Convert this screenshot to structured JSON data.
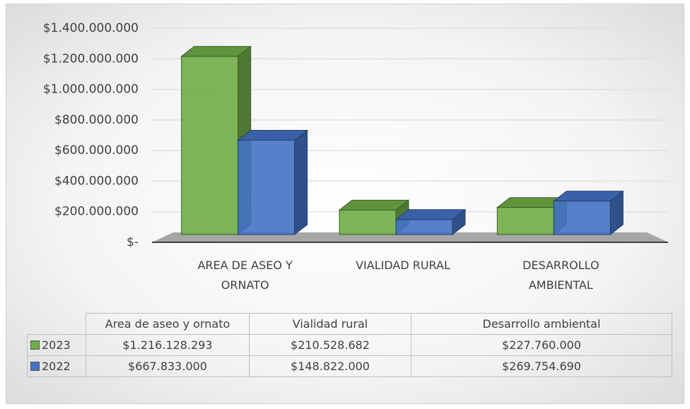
{
  "chart_data": {
    "type": "bar3d",
    "categories": [
      "AREA DE ASEO Y ORNATO",
      "VIALIDAD RURAL",
      "DESARROLLO AMBIENTAL"
    ],
    "table_categories": [
      "Area de aseo y ornato",
      "Vialidad rural",
      "Desarrollo ambiental"
    ],
    "series": [
      {
        "name": "2023",
        "color": "#70ad47",
        "values": [
          1216128293,
          210528682,
          227760000
        ],
        "value_labels": [
          "$1.216.128.293",
          "$210.528.682",
          "$227.760.000"
        ]
      },
      {
        "name": "2022",
        "color": "#4472c4",
        "values": [
          667833000,
          148822000,
          269754690
        ],
        "value_labels": [
          "$667.833.000",
          "$148.822.000",
          "$269.754.690"
        ]
      }
    ],
    "ylim": [
      0,
      1400000000
    ],
    "yticks": [
      {
        "value": 0,
        "label": "$-"
      },
      {
        "value": 200000000,
        "label": "$200.000.000"
      },
      {
        "value": 400000000,
        "label": "$400.000.000"
      },
      {
        "value": 600000000,
        "label": "$600.000.000"
      },
      {
        "value": 800000000,
        "label": "$800.000.000"
      },
      {
        "value": 1000000000,
        "label": "$1.000.000.000"
      },
      {
        "value": 1200000000,
        "label": "$1.200.000.000"
      },
      {
        "value": 1400000000,
        "label": "$1.400.000.000"
      }
    ],
    "grid": true
  }
}
